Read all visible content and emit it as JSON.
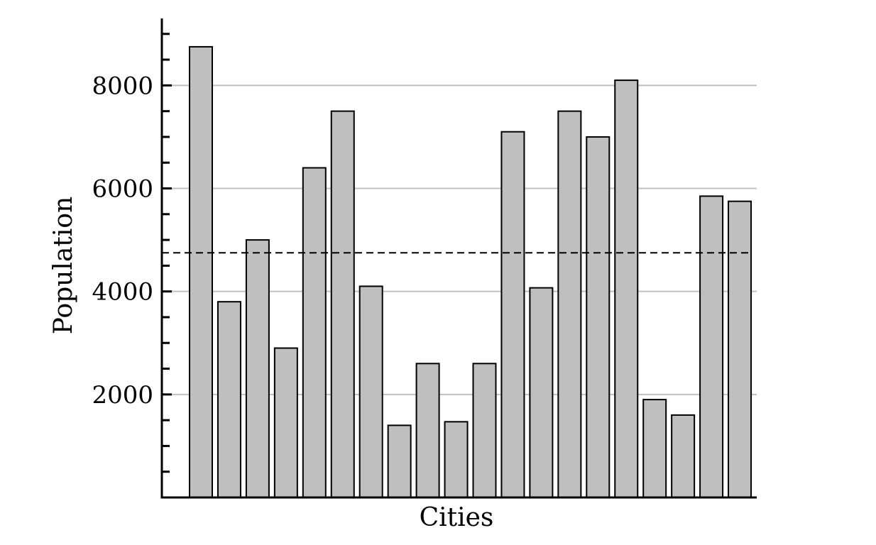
{
  "chart_data": {
    "type": "bar",
    "title": "",
    "xlabel": "Cities",
    "ylabel": "Population",
    "values": [
      8750,
      3800,
      5000,
      2900,
      6400,
      7500,
      4100,
      1400,
      2600,
      1470,
      2600,
      7100,
      4070,
      7500,
      7000,
      8100,
      1900,
      1600,
      5850,
      5750
    ],
    "ylim": [
      0,
      9300
    ],
    "yticks": [
      2000,
      4000,
      6000,
      8000
    ],
    "ytick_labels": [
      "2000",
      "4000",
      "6000",
      "8000"
    ],
    "minor_tick_step": 500,
    "reference_line": {
      "value": 4750,
      "style": "dashed"
    },
    "grid": {
      "y": true,
      "x": false
    },
    "colors": {
      "bar_fill": "#bfbfbf",
      "bar_edge": "#000000",
      "grid": "#c0c0c0",
      "axis": "#000000"
    }
  }
}
